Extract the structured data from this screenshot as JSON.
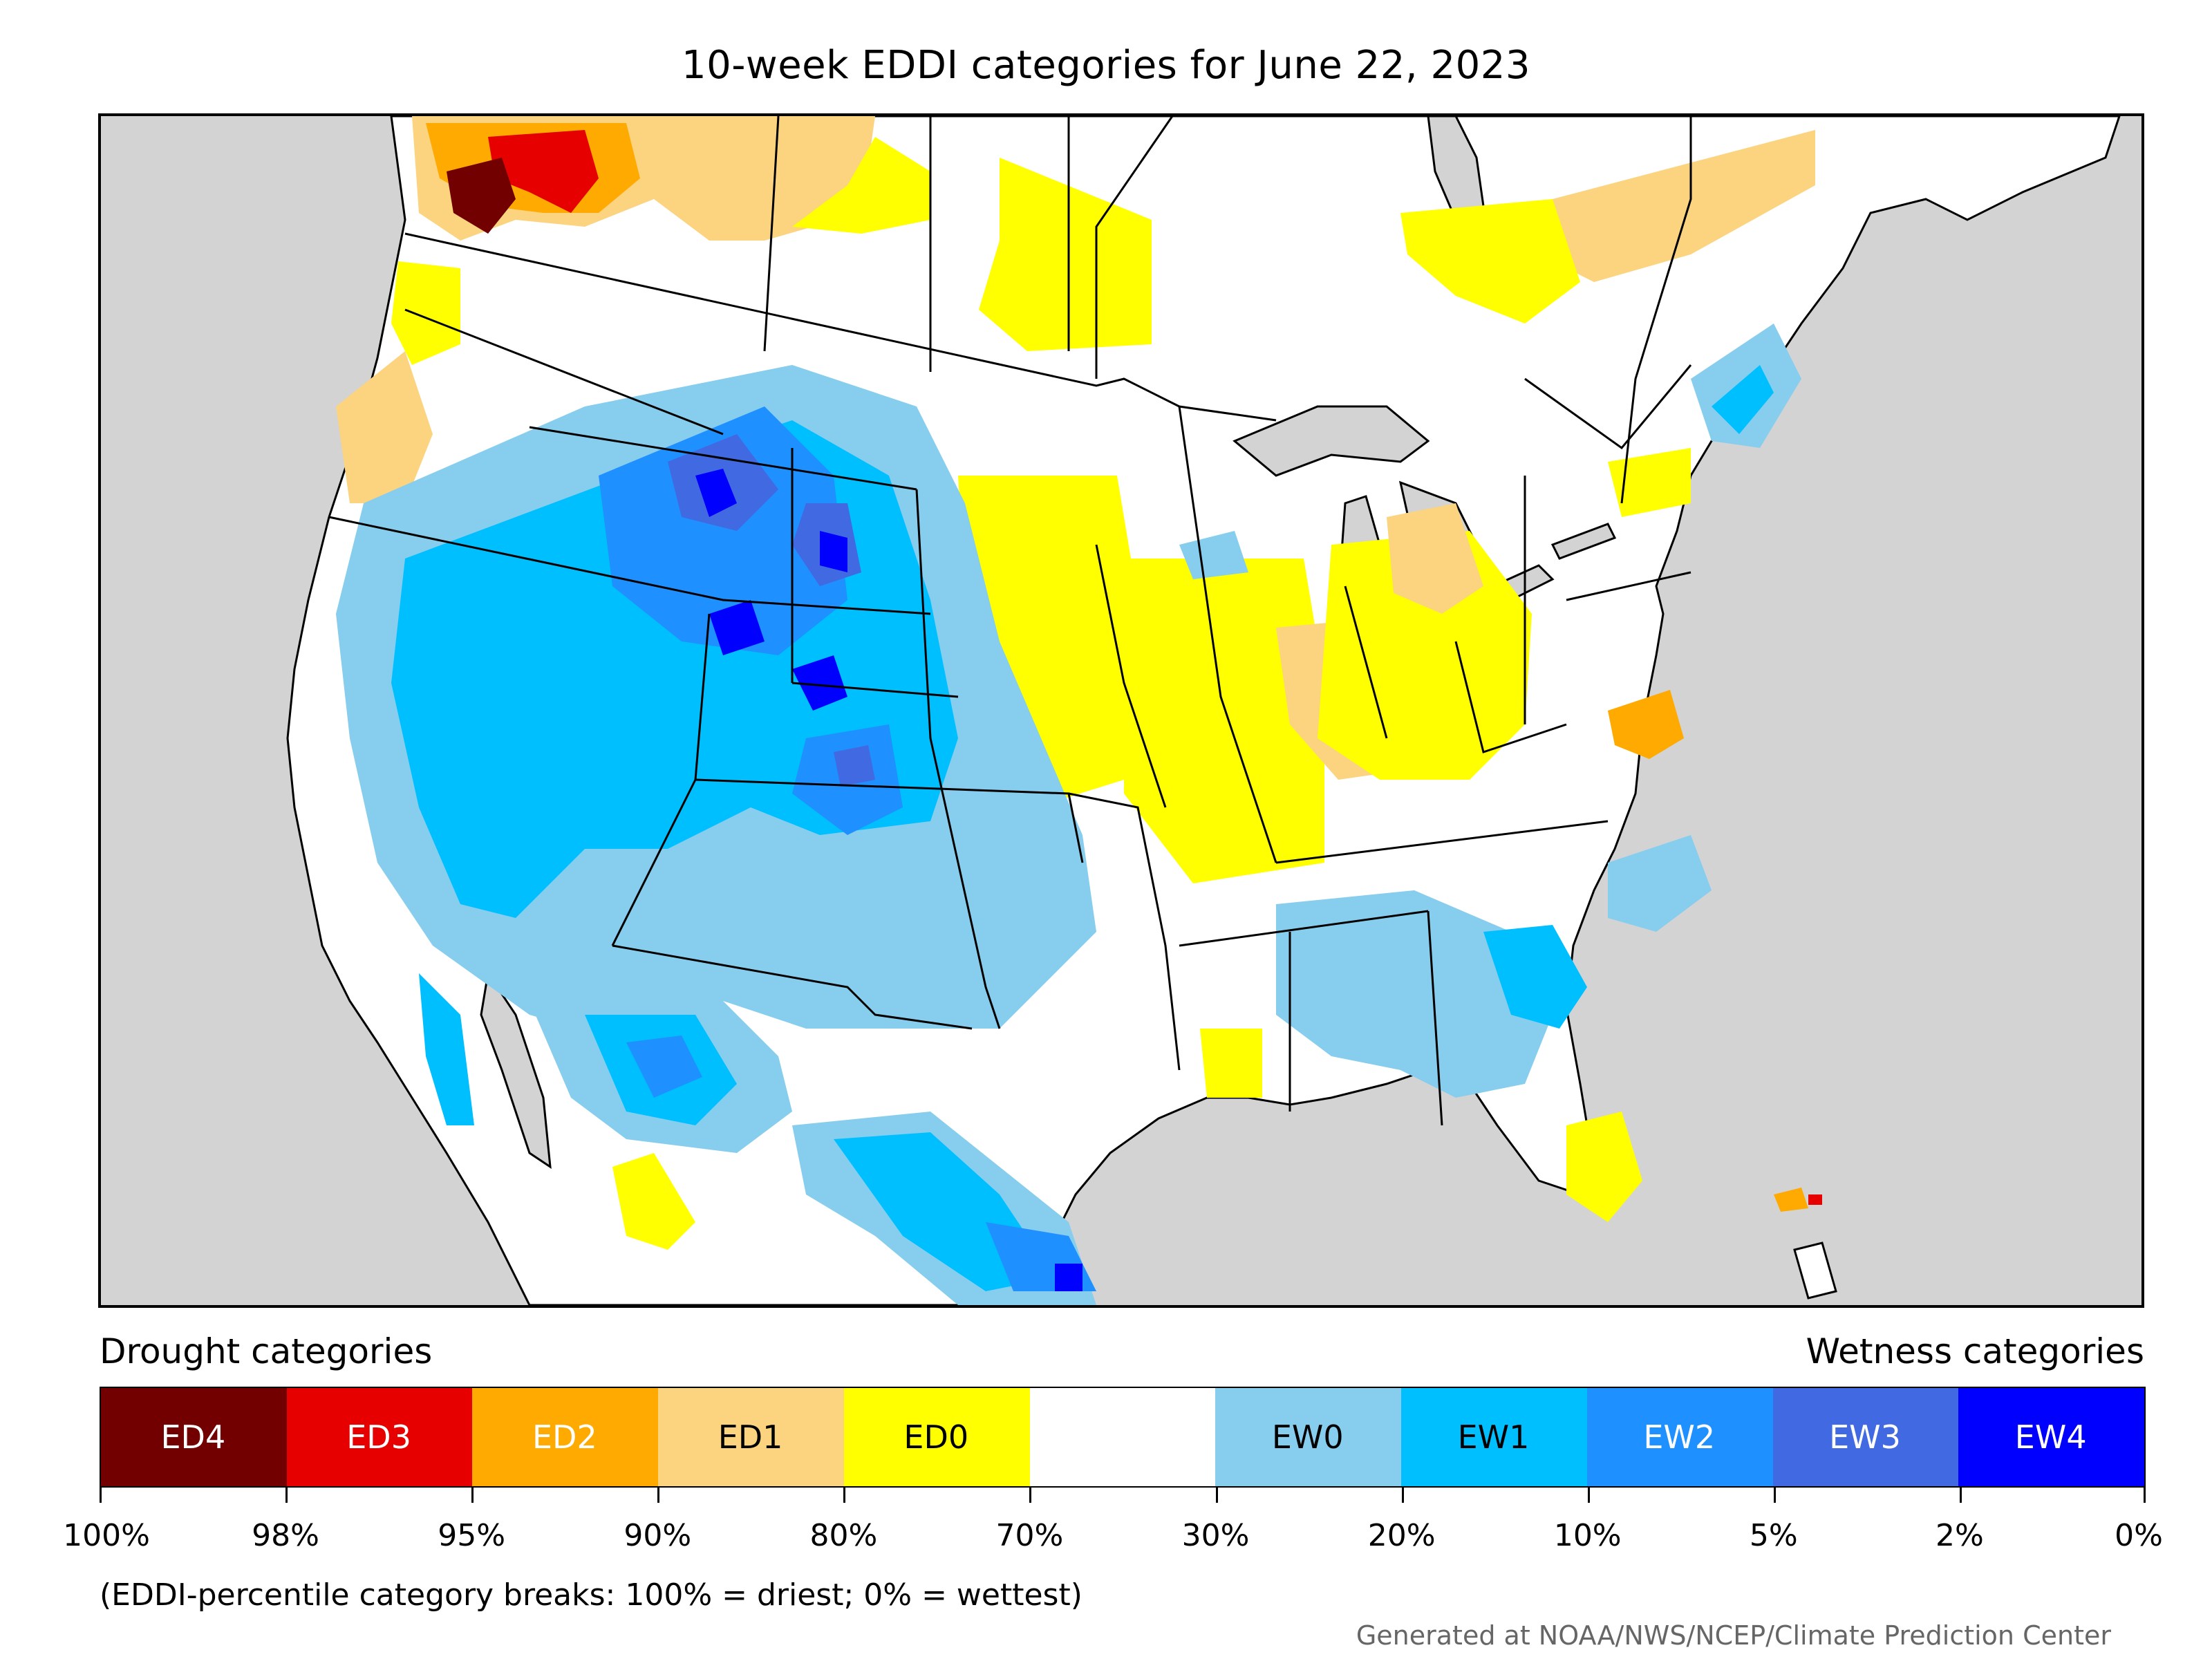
{
  "title": "10-week EDDI categories for June 22, 2023",
  "legend": {
    "left_heading": "Drought categories",
    "right_heading": "Wetness categories",
    "categories": [
      {
        "label": "ED4",
        "color": "#730000",
        "text_color": "#ffffff"
      },
      {
        "label": "ED3",
        "color": "#e60000",
        "text_color": "#ffffff"
      },
      {
        "label": "ED2",
        "color": "#ffaa00",
        "text_color": "#ffffff"
      },
      {
        "label": "ED1",
        "color": "#fcd37f",
        "text_color": "#000000"
      },
      {
        "label": "ED0",
        "color": "#ffff00",
        "text_color": "#000000"
      },
      {
        "label": "",
        "color": "#ffffff",
        "text_color": "#000000"
      },
      {
        "label": "EW0",
        "color": "#87cdee",
        "text_color": "#000000"
      },
      {
        "label": "EW1",
        "color": "#00bfff",
        "text_color": "#000000"
      },
      {
        "label": "EW2",
        "color": "#1e90ff",
        "text_color": "#ffffff"
      },
      {
        "label": "EW3",
        "color": "#4169e1",
        "text_color": "#ffffff"
      },
      {
        "label": "EW4",
        "color": "#0000ff",
        "text_color": "#ffffff"
      }
    ],
    "tick_labels": [
      "100%",
      "98%",
      "95%",
      "90%",
      "80%",
      "70%",
      "30%",
      "20%",
      "10%",
      "5%",
      "2%",
      "0%"
    ]
  },
  "note": "(EDDI-percentile category breaks: 100% = driest; 0% = wettest)",
  "credit": "Generated at NOAA/NWS/NCEP/Climate Prediction Center",
  "colors": {
    "ocean": "#d3d3d3",
    "land": "#ffffff",
    "boundary": "#000000"
  }
}
